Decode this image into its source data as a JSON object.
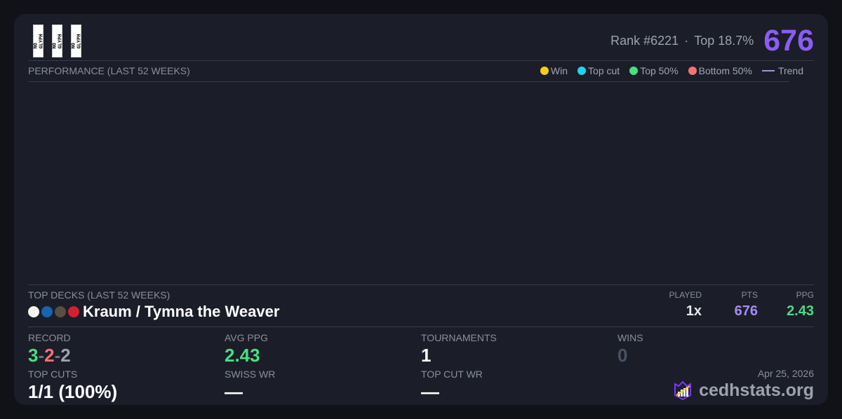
{
  "header": {
    "glyph_placeholders": [
      "NO GLYPH",
      "NO GLYPH",
      "NO GLYPH"
    ],
    "rank": "Rank #6221",
    "separator": "·",
    "top_percent": "Top 18.7%",
    "score": "676"
  },
  "performance": {
    "title": "PERFORMANCE (LAST 52 WEEKS)",
    "legend": [
      {
        "label": "Win",
        "color": "#facc15"
      },
      {
        "label": "Top cut",
        "color": "#22d3ee"
      },
      {
        "label": "Top 50%",
        "color": "#4ade80"
      },
      {
        "label": "Bottom 50%",
        "color": "#f87171"
      },
      {
        "label": "Trend",
        "color": "#a78bfa"
      }
    ]
  },
  "top_decks": {
    "title": "TOP DECKS (LAST 52 WEEKS)",
    "columns": [
      "PLAYED",
      "PTS",
      "PPG"
    ],
    "decks": [
      {
        "name": "Kraum / Tymna the Weaver",
        "colors": [
          "#f5f5ef",
          "#1565b0",
          "#5a4d42",
          "#d32030"
        ],
        "played": "1x",
        "pts": "676",
        "ppg": "2.43"
      }
    ]
  },
  "stats": {
    "record": {
      "label": "RECORD",
      "wins": "3",
      "losses": "2",
      "draws": "2",
      "sep": "-"
    },
    "avg_ppg": {
      "label": "AVG PPG",
      "value": "2.43"
    },
    "tournaments": {
      "label": "TOURNAMENTS",
      "value": "1"
    },
    "wins": {
      "label": "WINS",
      "value": "0"
    },
    "top_cuts": {
      "label": "TOP CUTS",
      "value": "1/1 (100%)"
    },
    "swiss_wr": {
      "label": "SWISS WR",
      "value": "—"
    },
    "top_cut_wr": {
      "label": "TOP CUT WR",
      "value": "—"
    }
  },
  "footer": {
    "date": "Apr 25, 2026",
    "brand": "cedhstats.org"
  }
}
